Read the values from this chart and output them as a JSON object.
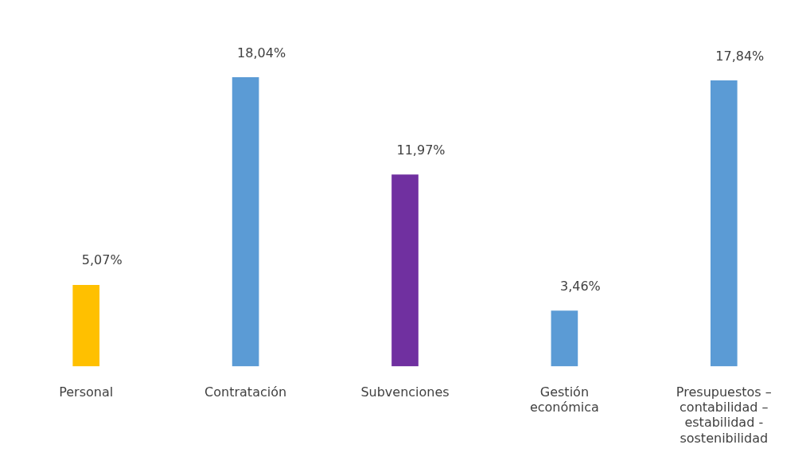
{
  "chart_data": {
    "type": "bar",
    "categories": [
      "Personal",
      "Contratación",
      "Subvenciones",
      "Gestión económica",
      "Presupuestos – contabilidad – estabilidad - sostenibilidad"
    ],
    "values": [
      5.07,
      18.04,
      11.97,
      3.46,
      17.84
    ],
    "colors": [
      "#ffc000",
      "#5b9bd5",
      "#7030a0",
      "#5b9bd5",
      "#5b9bd5"
    ],
    "value_labels": [
      "5,07%",
      "18,04%",
      "11,97%",
      "3,46%",
      "17,84%"
    ],
    "grid": false,
    "legend": false
  }
}
